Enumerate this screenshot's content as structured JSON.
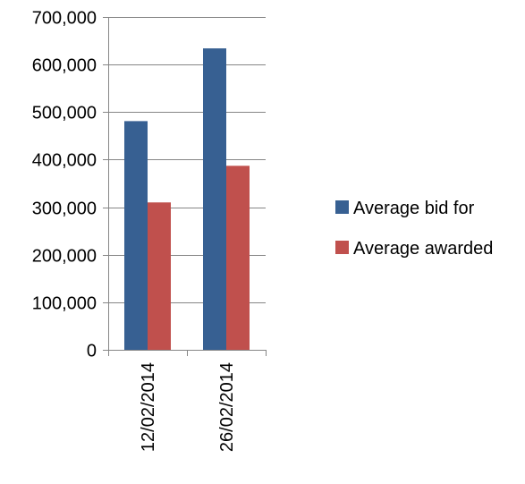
{
  "chart_data": {
    "type": "bar",
    "categories": [
      "12/02/2014",
      "26/02/2014"
    ],
    "series": [
      {
        "name": "Average bid for",
        "color": "#376092",
        "values": [
          481000,
          634000
        ]
      },
      {
        "name": "Average awarded",
        "color": "#c0504d",
        "values": [
          310000,
          387000
        ]
      }
    ],
    "ylim": [
      0,
      700000
    ],
    "yticks": [
      0,
      100000,
      200000,
      300000,
      400000,
      500000,
      600000,
      700000
    ],
    "ytick_labels": [
      "0",
      "100,000",
      "200,000",
      "300,000",
      "400,000",
      "500,000",
      "600,000",
      "700,000"
    ],
    "grid": true,
    "legend_position": "right",
    "title": "",
    "xlabel": "",
    "ylabel": ""
  }
}
